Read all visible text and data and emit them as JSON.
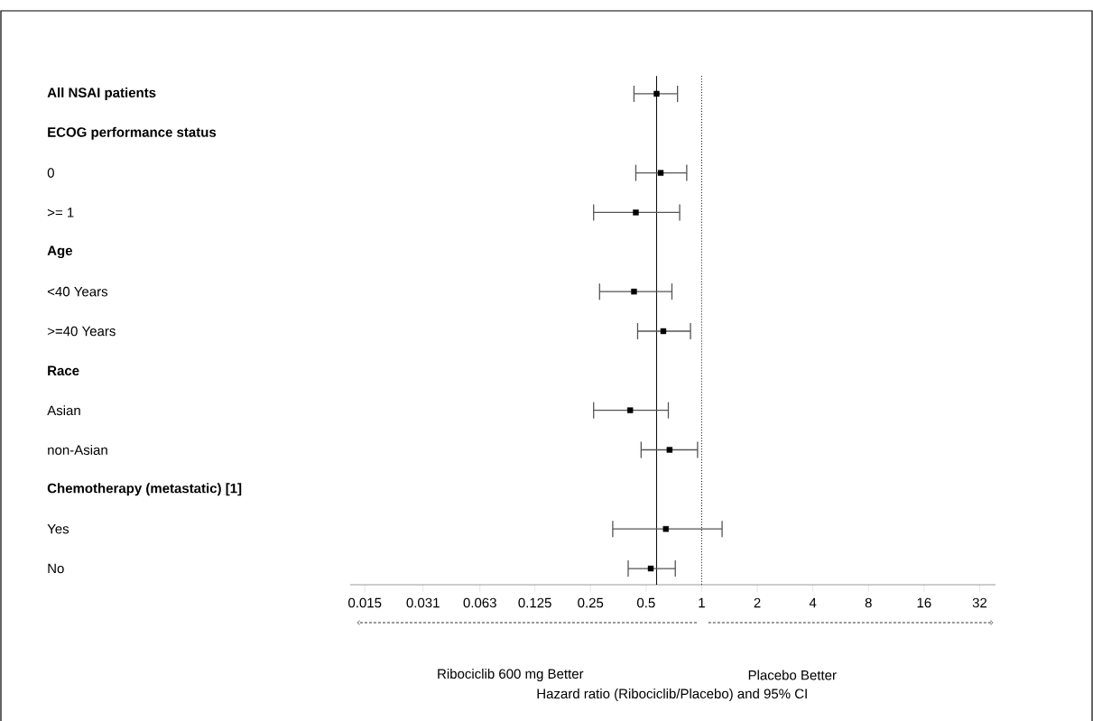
{
  "chart_data": {
    "type": "scatter",
    "orientation": "horizontal",
    "categories": [
      "All NSAI patients",
      "ECOG performance status",
      "0",
      ">= 1",
      "Age",
      "<40 Years",
      ">=40 Years",
      "Race",
      "Asian",
      "non-Asian",
      "Chemotherapy (metastatic) [1]",
      "Yes",
      "No"
    ],
    "values": [
      0.57,
      null,
      0.6,
      0.44,
      null,
      0.43,
      0.62,
      null,
      0.41,
      0.67,
      null,
      0.64,
      0.53
    ],
    "errors": [
      [
        0.43,
        0.74
      ],
      null,
      [
        0.44,
        0.83
      ],
      [
        0.26,
        0.76
      ],
      null,
      [
        0.28,
        0.69
      ],
      [
        0.45,
        0.87
      ],
      null,
      [
        0.26,
        0.66
      ],
      [
        0.47,
        0.95
      ],
      null,
      [
        0.33,
        1.29
      ],
      [
        0.4,
        0.72
      ]
    ],
    "color": "#000000",
    "marker": "square",
    "log": "x",
    "xlim": [
      0.0125,
      39
    ],
    "xticks": [
      0.015,
      0.031,
      0.063,
      0.125,
      0.25,
      0.5,
      1,
      2,
      4,
      8,
      16,
      32
    ],
    "ref_lines": [
      {
        "axis": "x",
        "value": 0.57,
        "line_style": "solid",
        "color": "#000000"
      },
      {
        "axis": "x",
        "value": 1,
        "line_style": "dotted",
        "color": "#000000"
      }
    ],
    "annotations": [
      "Ribociclib 600 mg Better",
      "Placebo Better",
      "Hazard ratio (Ribociclib/Placebo) and 95% CI"
    ]
  }
}
